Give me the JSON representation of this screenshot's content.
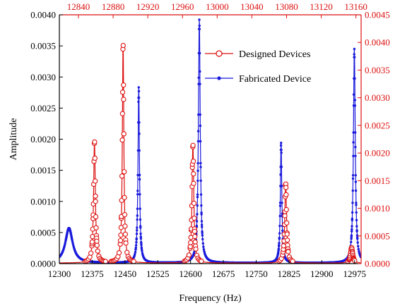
{
  "chart_data": {
    "type": "line",
    "title": "",
    "xlabel": "Frequency (Hz)",
    "ylabel": "Amplitude",
    "colors": {
      "designed": "#dd1111",
      "fabricated": "#1a1adc",
      "axis_black": "#000000"
    },
    "legend": {
      "placement": "top-right"
    },
    "grid": false,
    "x_bottom": {
      "range": [
        12300,
        12990
      ],
      "ticks": [
        12300,
        12375,
        12450,
        12525,
        12600,
        12675,
        12750,
        12825,
        12900,
        12975
      ],
      "tick_labels": [
        "12300",
        "12375",
        "12450",
        "12525",
        "12600",
        "12675",
        "12750",
        "12825",
        "12900",
        "12975"
      ]
    },
    "x_top": {
      "range": [
        12818,
        13166
      ],
      "ticks": [
        12840,
        12880,
        12920,
        12960,
        13000,
        13040,
        13080,
        13120,
        13160
      ],
      "tick_labels": [
        "12840",
        "12880",
        "12920",
        "12960",
        "13000",
        "13040",
        "13080",
        "13120",
        "13160"
      ]
    },
    "y_left": {
      "range": [
        0,
        0.004
      ],
      "ticks": [
        0,
        0.0005,
        0.001,
        0.0015,
        0.002,
        0.0025,
        0.003,
        0.0035,
        0.004
      ],
      "tick_labels": [
        "0.0000",
        "0.0005",
        "0.0010",
        "0.0015",
        "0.0020",
        "0.0025",
        "0.0030",
        "0.0035",
        "0.0040"
      ]
    },
    "y_right": {
      "range": [
        0,
        0.0045
      ],
      "ticks": [
        0,
        0.0005,
        0.001,
        0.0015,
        0.002,
        0.0025,
        0.003,
        0.0035,
        0.004,
        0.0045
      ],
      "tick_labels": [
        "0.0000",
        "0.0005",
        "0.0010",
        "0.0015",
        "0.0020",
        "0.0025",
        "0.0030",
        "0.0035",
        "0.0040",
        "0.0045"
      ]
    },
    "series": [
      {
        "name": "Designed Devices",
        "axes": "top-right",
        "marker": "open-circle",
        "baseline": 1e-05,
        "peaks": [
          {
            "f0": 12858.5,
            "amp": 0.00222,
            "width": 1.2
          },
          {
            "f0": 12891.5,
            "amp": 0.00402,
            "width": 1.0
          },
          {
            "f0": 12972.0,
            "amp": 0.00216,
            "width": 1.2
          },
          {
            "f0": 13079.0,
            "amp": 0.00145,
            "width": 1.2
          },
          {
            "f0": 13155.0,
            "amp": 0.00028,
            "width": 1.5
          }
        ]
      },
      {
        "name": "Fabricated Device",
        "axes": "bottom-left",
        "marker": "filled-dot",
        "baseline": 1e-05,
        "peaks": [
          {
            "f0": 12322.0,
            "amp": 0.00056,
            "width": 10.0
          },
          {
            "f0": 12481.5,
            "amp": 0.00282,
            "width": 2.0
          },
          {
            "f0": 12620.0,
            "amp": 0.00391,
            "width": 2.5
          },
          {
            "f0": 12807.0,
            "amp": 0.00193,
            "width": 2.0
          },
          {
            "f0": 12974.5,
            "amp": 0.00344,
            "width": 2.5
          }
        ]
      }
    ]
  }
}
